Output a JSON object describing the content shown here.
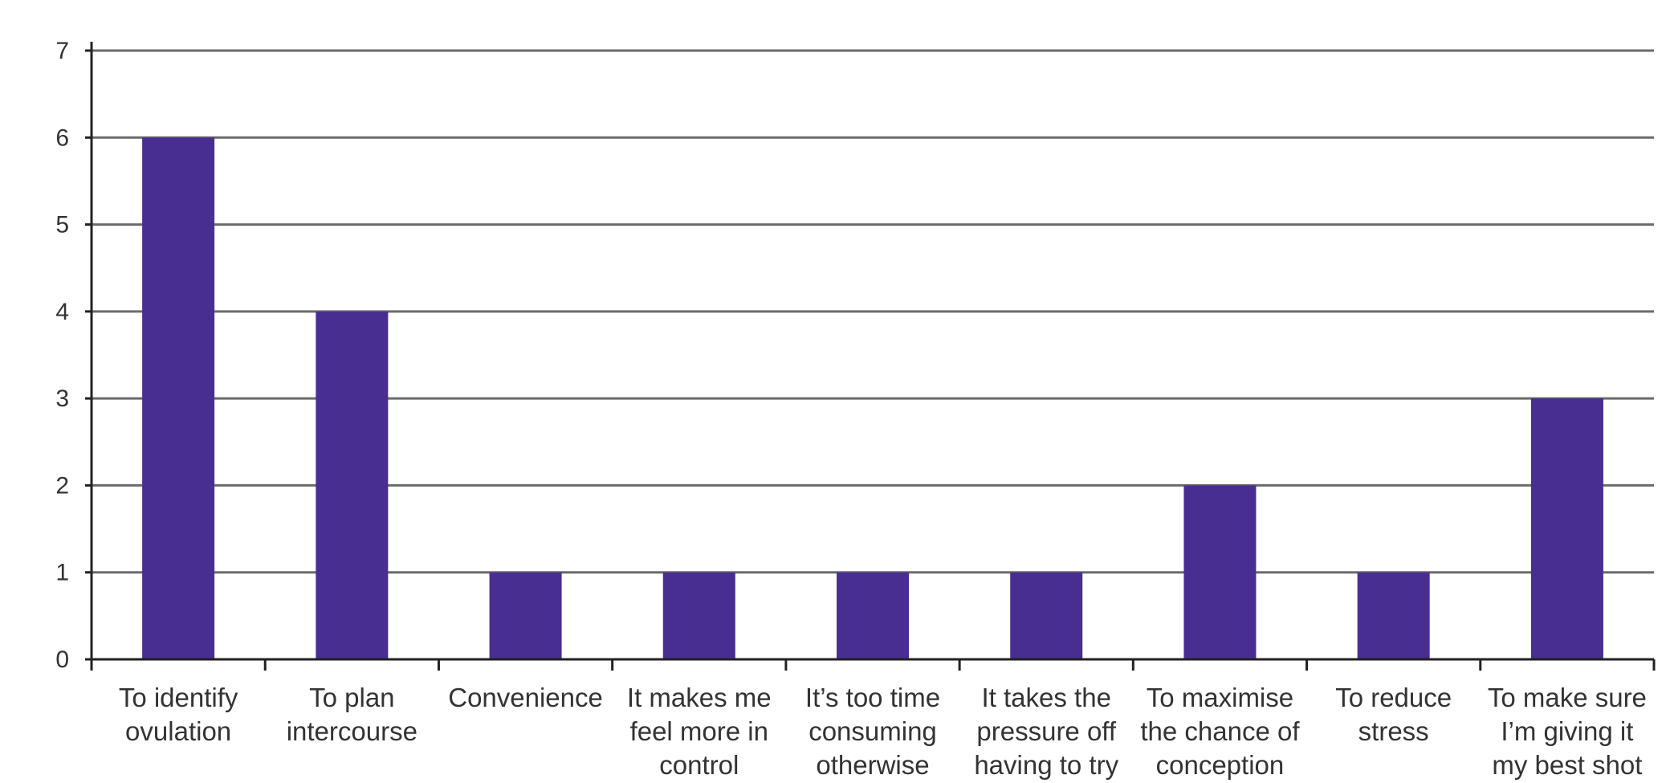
{
  "chart_data": {
    "type": "bar",
    "categories": [
      [
        "To identify",
        "ovulation"
      ],
      [
        "To plan",
        "intercourse"
      ],
      [
        "Convenience"
      ],
      [
        "It makes me",
        "feel more in",
        "control"
      ],
      [
        "It’s too time",
        "consuming",
        "otherwise"
      ],
      [
        "It takes the",
        "pressure off",
        "having to try"
      ],
      [
        "To maximise",
        "the chance of",
        "conception"
      ],
      [
        "To reduce",
        "stress"
      ],
      [
        "To make sure",
        "I’m giving it",
        "my best shot"
      ]
    ],
    "values": [
      6,
      4,
      1,
      1,
      1,
      1,
      2,
      1,
      3
    ],
    "yticks": [
      "0",
      "1",
      "2",
      "3",
      "4",
      "5",
      "6",
      "7"
    ],
    "ylim": [
      0,
      7
    ],
    "grid": true,
    "colors": {
      "bar": "#482e91",
      "grid": "#6b6b6b",
      "axis": "#222222",
      "text": "#333333"
    }
  }
}
